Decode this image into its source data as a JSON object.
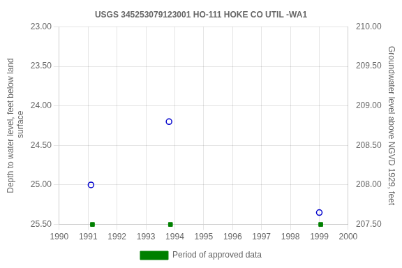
{
  "chart_data": {
    "type": "scatter",
    "title": "USGS 345253079123001 HO-111 HOKE CO UTIL -WA1",
    "ylabel": "Depth to water level, feet below land\n surface",
    "y2label": "Groundwater level above NGVD 1929, feet",
    "xlim": [
      1990,
      2000
    ],
    "xticks": [
      1990,
      1991,
      1992,
      1993,
      1994,
      1995,
      1996,
      1997,
      1998,
      1999,
      2000
    ],
    "ylim": [
      25.5,
      23.0
    ],
    "yticks": [
      {
        "value": 23.0,
        "label": "23.00"
      },
      {
        "value": 23.5,
        "label": "23.50"
      },
      {
        "value": 24.0,
        "label": "24.00"
      },
      {
        "value": 24.5,
        "label": "24.50"
      },
      {
        "value": 25.0,
        "label": "25.00"
      },
      {
        "value": 25.5,
        "label": "25.50"
      }
    ],
    "y2lim": [
      207.5,
      210.0
    ],
    "y2ticks": [
      {
        "value": 210.0,
        "label": "210.00"
      },
      {
        "value": 209.5,
        "label": "209.50"
      },
      {
        "value": 209.0,
        "label": "209.00"
      },
      {
        "value": 208.5,
        "label": "208.50"
      },
      {
        "value": 208.0,
        "label": "208.00"
      },
      {
        "value": 207.5,
        "label": "207.50"
      }
    ],
    "grid": true,
    "legend": "bottom",
    "series": [
      {
        "x": [
          1991.1,
          1993.8,
          1999.0
        ],
        "values": [
          25.0,
          24.2,
          25.35
        ],
        "color": "#0000cc",
        "marker": "circle"
      },
      {
        "name": "Period of approved data",
        "x": [
          1991.15,
          1993.85,
          1999.05
        ],
        "values": [
          25.5,
          25.5,
          25.5
        ],
        "color": "#008000",
        "marker": "square"
      }
    ]
  }
}
